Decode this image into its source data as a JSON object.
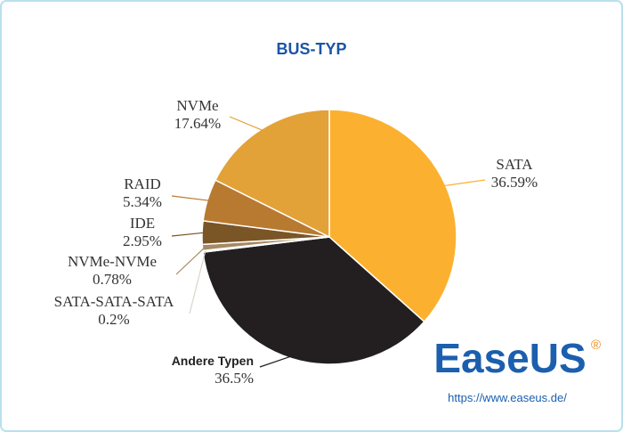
{
  "chart_data": {
    "type": "pie",
    "title": "BUS-TYP",
    "categories": [
      "SATA",
      "Andere Typen",
      "SATA-SATA-SATA",
      "NVMe-NVMe",
      "IDE",
      "RAID",
      "NVMe"
    ],
    "values": [
      36.59,
      36.5,
      0.2,
      0.78,
      2.95,
      5.34,
      17.64
    ],
    "value_labels": [
      "36.59%",
      "36.5%",
      "0.2%",
      "0.78%",
      "2.95%",
      "5.34%",
      "17.64%"
    ],
    "colors": [
      "#fbb12f",
      "#231f20",
      "#d9d4cc",
      "#a58a64",
      "#7a5526",
      "#b87a30",
      "#e2a238"
    ]
  },
  "brand": {
    "name": "EaseUS",
    "mark": "®",
    "url": "https://www.easeus.de/"
  }
}
